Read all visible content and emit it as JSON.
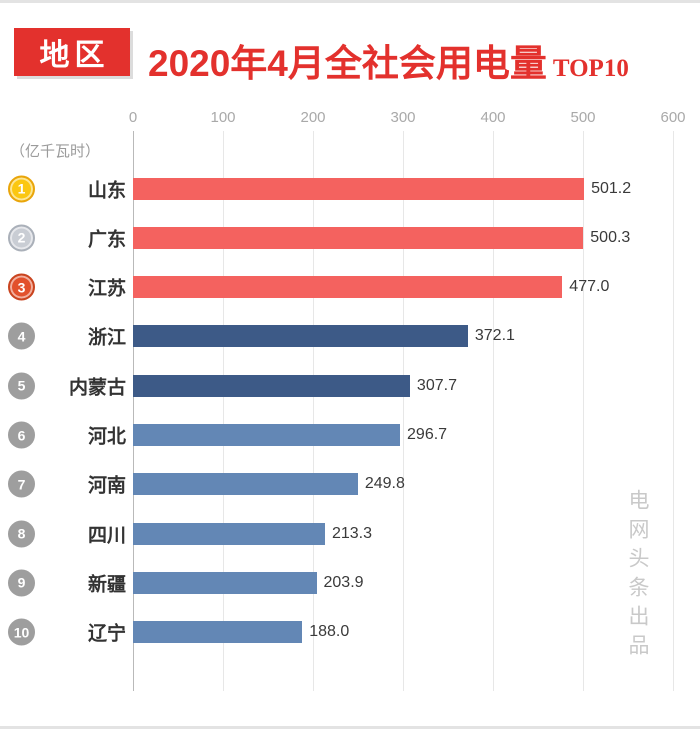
{
  "header": {
    "badge": "地区",
    "title": "2020年4月全社会用电量",
    "top_label": "TOP10"
  },
  "unit": "（亿千瓦时）",
  "watermark": "电网头条出品",
  "colors": {
    "accent_red": "#e3312d",
    "axis_text": "#a9a9a9",
    "value_text": "#3a3a3a"
  },
  "chart_data": {
    "type": "bar",
    "orientation": "horizontal",
    "title": "2020年4月全社会用电量 TOP10",
    "xlabel": "亿千瓦时",
    "xlim": [
      0,
      600
    ],
    "x_ticks": [
      0,
      100,
      200,
      300,
      400,
      500,
      600
    ],
    "grid": true,
    "categories": [
      "山东",
      "广东",
      "江苏",
      "浙江",
      "内蒙古",
      "河北",
      "河南",
      "四川",
      "新疆",
      "辽宁"
    ],
    "values": [
      501.2,
      500.3,
      477.0,
      372.1,
      307.7,
      296.7,
      249.8,
      213.3,
      203.9,
      188.0
    ],
    "value_labels": [
      "501.2",
      "500.3",
      "477.0",
      "372.1",
      "307.7",
      "296.7",
      "249.8",
      "213.3",
      "203.9",
      "188.0"
    ],
    "ranks": [
      "1",
      "2",
      "3",
      "4",
      "5",
      "6",
      "7",
      "8",
      "9",
      "10"
    ],
    "bar_colors": [
      "#f4625f",
      "#f4625f",
      "#f4625f",
      "#3d5a87",
      "#3d5a87",
      "#6387b5",
      "#6387b5",
      "#6387b5",
      "#6387b5",
      "#6387b5"
    ],
    "rank_colors": [
      "#fbc711",
      "#c9cdd4",
      "#e2512c",
      "#9e9e9e",
      "#9e9e9e",
      "#9e9e9e",
      "#9e9e9e",
      "#9e9e9e",
      "#9e9e9e",
      "#9e9e9e"
    ],
    "rank_border_colors": [
      "#e9a50b",
      "#aab0b9",
      "#c9441f",
      "#9e9e9e",
      "#9e9e9e",
      "#9e9e9e",
      "#9e9e9e",
      "#9e9e9e",
      "#9e9e9e",
      "#9e9e9e"
    ]
  }
}
